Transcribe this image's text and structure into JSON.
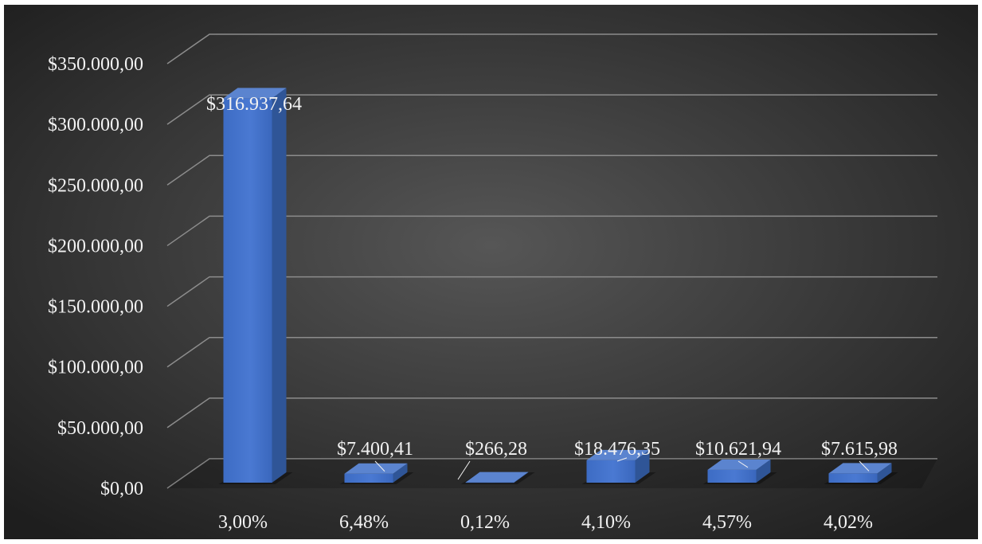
{
  "chart_data": {
    "type": "bar",
    "title": "",
    "xlabel": "",
    "ylabel": "",
    "categories": [
      "3,00%",
      "6,48%",
      "0,12%",
      "4,10%",
      "4,57%",
      "4,02%"
    ],
    "values": [
      316937.64,
      7400.41,
      266.28,
      18476.35,
      10621.94,
      7615.98
    ],
    "data_labels": [
      "$316.937,64",
      "$7.400,41",
      "$266,28",
      "$18.476,35",
      "$10.621,94",
      "$7.615,98"
    ],
    "ylim": [
      0,
      350000
    ],
    "yticks": [
      0,
      50000,
      100000,
      150000,
      200000,
      250000,
      300000,
      350000
    ],
    "ytick_labels": [
      "$0,00",
      "$50.000,00",
      "$100.000,00",
      "$150.000,00",
      "$200.000,00",
      "$250.000,00",
      "$300.000,00",
      "$350.000,00"
    ],
    "grid": true,
    "legend": "none",
    "style": "3d-column",
    "colors": {
      "background": "#3a3a3a",
      "bar_front": "#4472c4",
      "bar_side": "#2f5597",
      "bar_top": "#5b84cf",
      "grid": "#8c8c8c",
      "text": "#f2f2f2"
    }
  }
}
